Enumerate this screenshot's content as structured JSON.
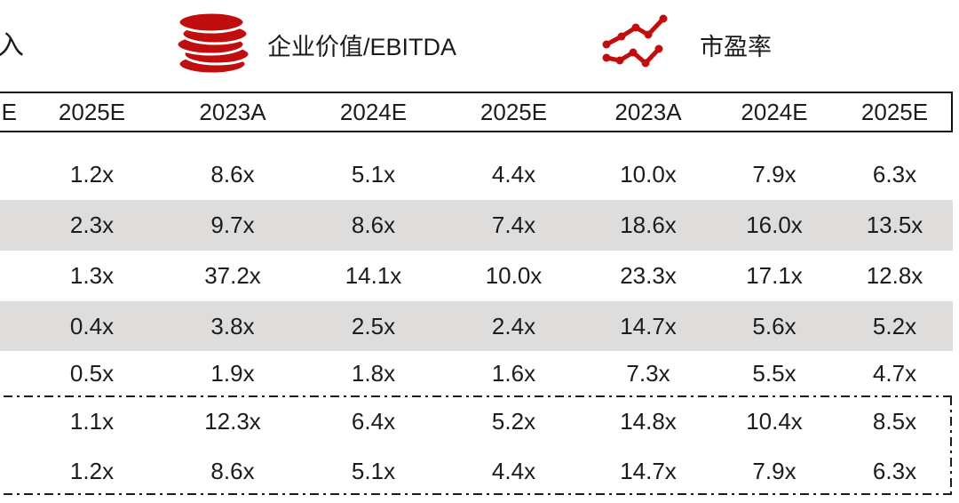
{
  "page": {
    "background": "#ffffff",
    "accent_red": "#c00e0e",
    "text_color": "#1c1c1c",
    "shaded_row_bg": "#dedddb"
  },
  "legend": {
    "partial_label": "入",
    "items": [
      {
        "icon": "coin-stack-icon",
        "label": "企业价值/EBITDA"
      },
      {
        "icon": "line-chart-icon",
        "label": "市盈率"
      }
    ]
  },
  "table": {
    "columns": [
      "E",
      "2025E",
      "2023A",
      "2024E",
      "2025E",
      "2023A",
      "2024E",
      "2025E"
    ],
    "rows": [
      {
        "shaded": false,
        "highlight_group": false,
        "cells": [
          "",
          "1.2x",
          "8.6x",
          "5.1x",
          "4.4x",
          "10.0x",
          "7.9x",
          "6.3x"
        ]
      },
      {
        "shaded": true,
        "highlight_group": false,
        "cells": [
          "",
          "2.3x",
          "9.7x",
          "8.6x",
          "7.4x",
          "18.6x",
          "16.0x",
          "13.5x"
        ]
      },
      {
        "shaded": false,
        "highlight_group": false,
        "cells": [
          "",
          "1.3x",
          "37.2x",
          "14.1x",
          "10.0x",
          "23.3x",
          "17.1x",
          "12.8x"
        ]
      },
      {
        "shaded": true,
        "highlight_group": false,
        "cells": [
          "",
          "0.4x",
          "3.8x",
          "2.5x",
          "2.4x",
          "14.7x",
          "5.6x",
          "5.2x"
        ]
      },
      {
        "shaded": false,
        "highlight_group": false,
        "cells": [
          "",
          "0.5x",
          "1.9x",
          "1.8x",
          "1.6x",
          "7.3x",
          "5.5x",
          "4.7x"
        ]
      },
      {
        "shaded": false,
        "highlight_group": true,
        "cells": [
          "",
          "1.1x",
          "12.3x",
          "6.4x",
          "5.2x",
          "14.8x",
          "10.4x",
          "8.5x"
        ]
      },
      {
        "shaded": false,
        "highlight_group": true,
        "cells": [
          "",
          "1.2x",
          "8.6x",
          "5.1x",
          "4.4x",
          "14.7x",
          "7.9x",
          "6.3x"
        ]
      }
    ]
  }
}
